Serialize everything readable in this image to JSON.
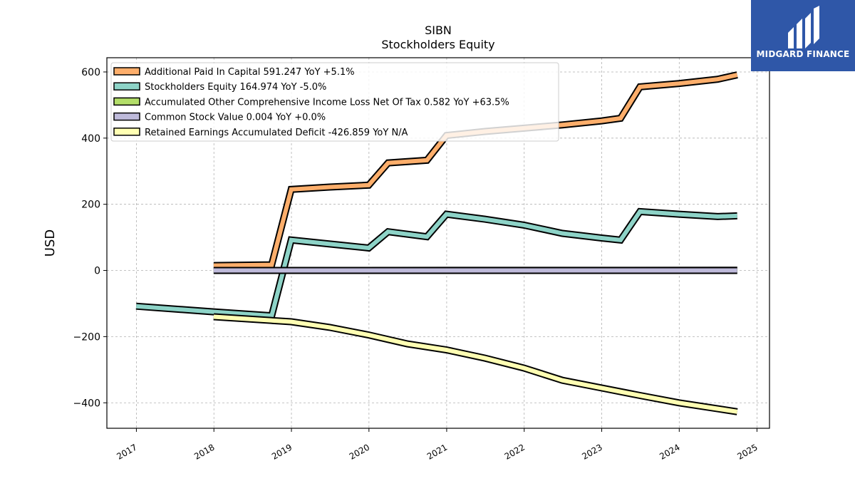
{
  "logo": {
    "text": "MIDGARD FINANCE",
    "bg_color": "#2f57a8"
  },
  "chart_data": {
    "type": "line",
    "title": "SIBN",
    "subtitle": "Stockholders  Equity",
    "xlabel": "",
    "ylabel": "USD",
    "xlim": [
      "2016-08-15",
      "2025-03-01"
    ],
    "ylim": [
      -477,
      643
    ],
    "x_ticks": [
      "2017",
      "2018",
      "2019",
      "2020",
      "2021",
      "2022",
      "2023",
      "2024",
      "2025"
    ],
    "y_ticks": [
      600,
      400,
      200,
      0,
      -200,
      -400
    ],
    "y_tick_labels": [
      "600",
      "400",
      "200",
      "0",
      "−200",
      "−400"
    ],
    "grid": true,
    "legend_position": "top-left",
    "series": [
      {
        "name": "Additional Paid In Capital  591.247 YoY +5.1%",
        "color": "#fdae6b",
        "points": [
          [
            "2017-12-31",
            15
          ],
          [
            "2018-09-30",
            17
          ],
          [
            "2018-12-31",
            245
          ],
          [
            "2019-06-30",
            252
          ],
          [
            "2019-12-31",
            258
          ],
          [
            "2020-03-31",
            325
          ],
          [
            "2020-09-30",
            333
          ],
          [
            "2020-12-31",
            408
          ],
          [
            "2021-06-30",
            420
          ],
          [
            "2021-12-31",
            430
          ],
          [
            "2022-06-30",
            440
          ],
          [
            "2022-12-31",
            452
          ],
          [
            "2023-03-31",
            460
          ],
          [
            "2023-06-30",
            555
          ],
          [
            "2023-12-31",
            565
          ],
          [
            "2024-06-30",
            578
          ],
          [
            "2024-09-30",
            591
          ]
        ]
      },
      {
        "name": "Stockholders Equity  164.974 YoY -5.0%",
        "color": "#8dd3c7",
        "points": [
          [
            "2016-12-31",
            -108
          ],
          [
            "2017-12-31",
            -125
          ],
          [
            "2018-09-30",
            -137
          ],
          [
            "2018-12-31",
            92
          ],
          [
            "2019-06-30",
            80
          ],
          [
            "2019-12-31",
            68
          ],
          [
            "2020-03-31",
            117
          ],
          [
            "2020-09-30",
            102
          ],
          [
            "2020-12-31",
            170
          ],
          [
            "2021-06-30",
            155
          ],
          [
            "2021-12-31",
            137
          ],
          [
            "2022-06-30",
            112
          ],
          [
            "2022-12-31",
            98
          ],
          [
            "2023-03-31",
            92
          ],
          [
            "2023-06-30",
            178
          ],
          [
            "2023-12-31",
            170
          ],
          [
            "2024-06-30",
            163
          ],
          [
            "2024-09-30",
            165
          ]
        ]
      },
      {
        "name": "Accumulated Other Comprehensive Income Loss Net Of Tax  0.582 YoY +63.5%",
        "color": "#b3de69",
        "points": [
          [
            "2017-12-31",
            0
          ],
          [
            "2024-09-30",
            0.582
          ]
        ]
      },
      {
        "name": "Common Stock Value  0.004 YoY +0.0%",
        "color": "#bebada",
        "points": [
          [
            "2017-12-31",
            0.004
          ],
          [
            "2024-09-30",
            0.004
          ]
        ]
      },
      {
        "name": "Retained Earnings Accumulated Deficit  -426.859 YoY N/A",
        "color": "#ffffb3",
        "points": [
          [
            "2017-12-31",
            -140
          ],
          [
            "2018-12-31",
            -155
          ],
          [
            "2019-06-30",
            -172
          ],
          [
            "2019-12-31",
            -195
          ],
          [
            "2020-06-30",
            -222
          ],
          [
            "2020-12-31",
            -240
          ],
          [
            "2021-06-30",
            -265
          ],
          [
            "2021-12-31",
            -295
          ],
          [
            "2022-06-30",
            -332
          ],
          [
            "2022-12-31",
            -355
          ],
          [
            "2023-06-30",
            -378
          ],
          [
            "2023-12-31",
            -400
          ],
          [
            "2024-06-30",
            -418
          ],
          [
            "2024-09-30",
            -427
          ]
        ]
      }
    ]
  }
}
